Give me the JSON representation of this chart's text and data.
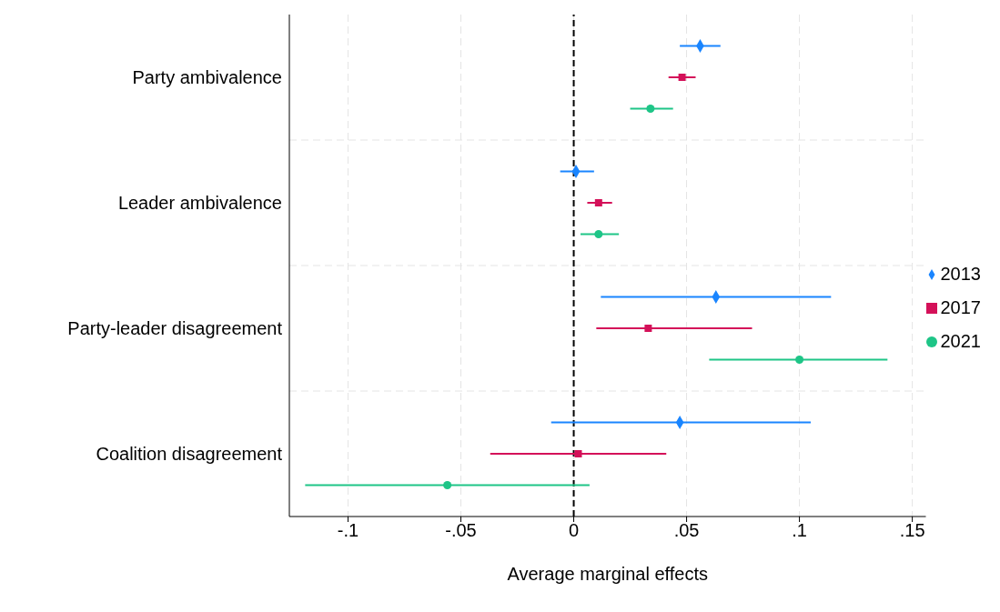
{
  "chart_data": {
    "type": "scatter",
    "orientation": "horizontal",
    "xlabel": "Average marginal effects",
    "categories": [
      "Party ambivalence",
      "Leader ambivalence",
      "Party-leader disagreement",
      "Coalition disagreement"
    ],
    "series": [
      {
        "name": "2013",
        "color": "#1a85ff",
        "marker": "diamond",
        "values": [
          0.056,
          0.001,
          0.063,
          0.047
        ],
        "errors": [
          [
            0.047,
            0.065
          ],
          [
            -0.006,
            0.009
          ],
          [
            0.012,
            0.114
          ],
          [
            -0.01,
            0.105
          ]
        ]
      },
      {
        "name": "2017",
        "color": "#d41159",
        "marker": "square",
        "values": [
          0.048,
          0.011,
          0.033,
          0.002
        ],
        "errors": [
          [
            0.042,
            0.054
          ],
          [
            0.006,
            0.017
          ],
          [
            0.01,
            0.079
          ],
          [
            -0.037,
            0.041
          ]
        ]
      },
      {
        "name": "2021",
        "color": "#1ec587",
        "marker": "circle",
        "values": [
          0.034,
          0.011,
          0.1,
          -0.056
        ],
        "errors": [
          [
            0.025,
            0.044
          ],
          [
            0.003,
            0.02
          ],
          [
            0.06,
            0.139
          ],
          [
            -0.119,
            0.007
          ]
        ]
      }
    ],
    "xlim": [
      -0.126,
      0.156
    ],
    "xticks": [
      {
        "value": -0.1,
        "label": "-.1"
      },
      {
        "value": -0.05,
        "label": "-.05"
      },
      0,
      {
        "value": 0.05,
        "label": ".05"
      },
      {
        "value": 0.1,
        "label": ".1"
      },
      {
        "value": 0.15,
        "label": ".15"
      }
    ],
    "ref_lines": [
      {
        "axis": "x",
        "value": 0,
        "color": "#000000",
        "line_style": "dashed"
      }
    ],
    "grid": true,
    "legend": "right"
  }
}
